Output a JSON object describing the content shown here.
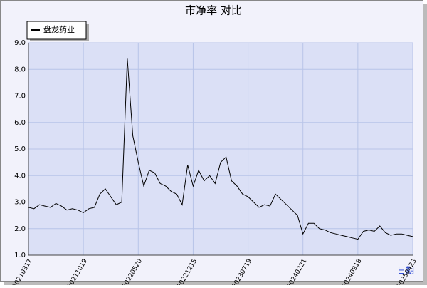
{
  "chart_data": {
    "type": "line",
    "title": "市净率 对比",
    "x_label": "日期",
    "categories": [
      "20210317",
      null,
      null,
      null,
      null,
      null,
      null,
      null,
      null,
      null,
      "20211019",
      null,
      null,
      null,
      null,
      null,
      null,
      null,
      null,
      null,
      "20220520",
      null,
      null,
      null,
      null,
      null,
      null,
      null,
      null,
      null,
      "20221215",
      null,
      null,
      null,
      null,
      null,
      null,
      null,
      null,
      null,
      "20230719",
      null,
      null,
      null,
      null,
      null,
      null,
      null,
      null,
      null,
      "20240221",
      null,
      null,
      null,
      null,
      null,
      null,
      null,
      null,
      null,
      "20240918",
      null,
      null,
      null,
      null,
      null,
      null,
      null,
      null,
      null,
      "20250423"
    ],
    "series": [
      {
        "name": "盘龙药业",
        "color": "#000000",
        "values": [
          2.8,
          2.75,
          2.9,
          2.85,
          2.8,
          2.95,
          2.85,
          2.7,
          2.75,
          2.7,
          2.6,
          2.75,
          2.8,
          3.3,
          3.5,
          3.2,
          2.9,
          3.0,
          8.4,
          5.5,
          4.5,
          3.6,
          4.2,
          4.1,
          3.7,
          3.6,
          3.4,
          3.3,
          2.9,
          4.4,
          3.6,
          4.2,
          3.8,
          4.0,
          3.7,
          4.5,
          4.7,
          3.8,
          3.6,
          3.3,
          3.2,
          3.0,
          2.8,
          2.9,
          2.85,
          3.3,
          3.1,
          2.9,
          2.7,
          2.5,
          1.8,
          2.2,
          2.2,
          2.0,
          1.95,
          1.85,
          1.8,
          1.75,
          1.7,
          1.65,
          1.6,
          1.9,
          1.95,
          1.9,
          2.1,
          1.85,
          1.75,
          1.8,
          1.8,
          1.75,
          1.7
        ]
      }
    ],
    "ylim": [
      1,
      9
    ],
    "yticks": [
      {
        "value": 1,
        "label": "1.0"
      },
      {
        "value": 2,
        "label": "2.0"
      },
      {
        "value": 3,
        "label": "3.0"
      },
      {
        "value": 4,
        "label": "4.0"
      },
      {
        "value": 5,
        "label": "5.0"
      },
      {
        "value": 6,
        "label": "6.0"
      },
      {
        "value": 7,
        "label": "7.0"
      },
      {
        "value": 8,
        "label": "8.0"
      },
      {
        "value": 9,
        "label": "9.0"
      }
    ],
    "grid": true
  }
}
